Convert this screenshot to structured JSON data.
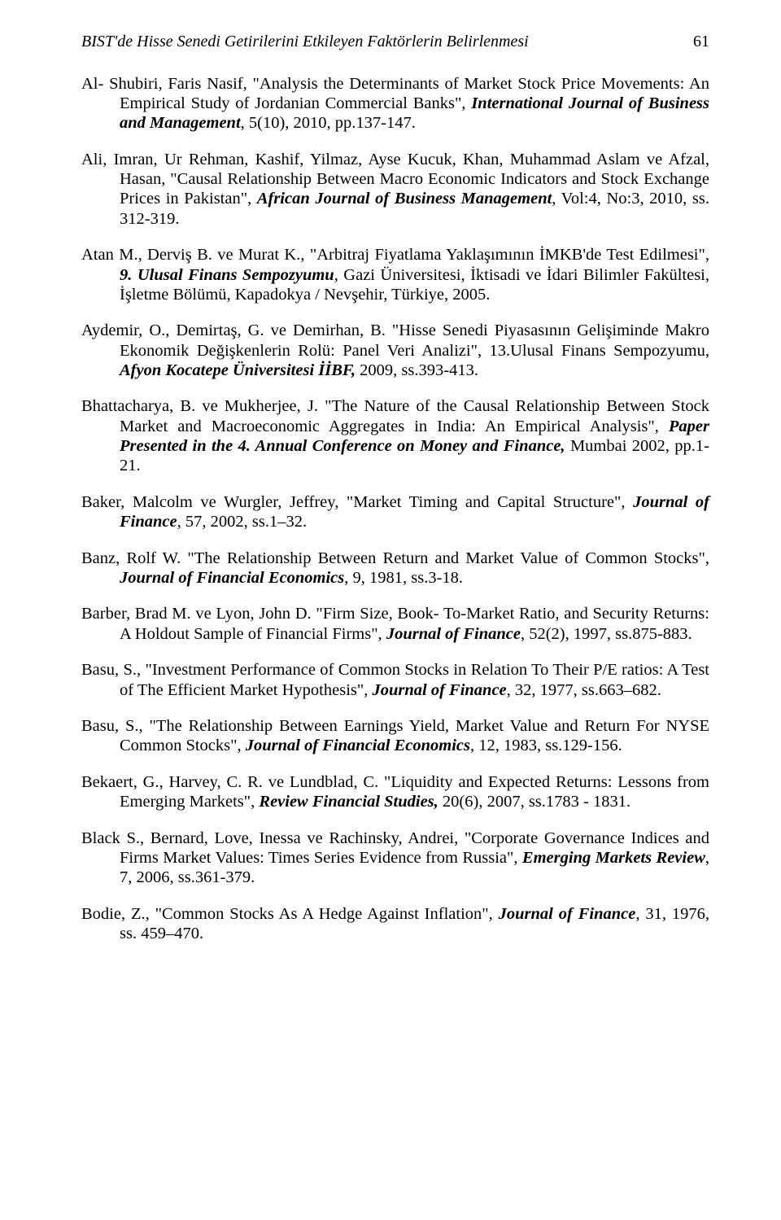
{
  "header": {
    "title": "BIST'de Hisse Senedi Getirilerini Etkileyen Faktörlerin Belirlenmesi",
    "page_number": "61"
  },
  "references": [
    {
      "r1": "Al- Shubiri, Faris Nasif, \"Analysis the Determinants of Market Stock Price Movements: An Empirical Study of Jordanian Commercial Banks\", ",
      "j1": "International Journal of Business and Management",
      "r2": ", 5(10), 2010, pp.137-147."
    },
    {
      "r1": "Ali, Imran, Ur Rehman, Kashif, Yilmaz, Ayse Kucuk, Khan, Muhammad Aslam ve Afzal, Hasan, \"Causal Relationship Between Macro Economic Indicators and Stock Exchange Prices in Pakistan\", ",
      "j1": "African Journal of Business Management",
      "r2": ", Vol:4, No:3, 2010, ss. 312-319."
    },
    {
      "r1": "Atan M., Derviş B. ve Murat K., \"Arbitraj Fiyatlama Yaklaşımının İMKB'de Test Edilmesi\", ",
      "j1": "9. Ulusal Finans Sempozyumu",
      "r2": ", Gazi Üniversitesi, İktisadi ve İdari Bilimler Fakültesi, İşletme Bölümü, Kapadokya / Nevşehir, Türkiye, 2005."
    },
    {
      "r1": "Aydemir, O., Demirtaş, G. ve Demirhan, B. \"Hisse Senedi Piyasasının Gelişiminde Makro Ekonomik Değişkenlerin Rolü: Panel Veri Analizi\", 13.Ulusal Finans Sempozyumu, ",
      "j1": "Afyon Kocatepe Üniversitesi İİBF,",
      "r2": " 2009, ss.393-413."
    },
    {
      "r1": "Bhattacharya, B. ve Mukherjee, J. \"The Nature of the Causal Relationship Between Stock Market and Macroeconomic Aggregates in India: An Empirical Analysis\", ",
      "j1": "Paper Presented in the 4. Annual Conference on Money and Finance,",
      "r2": " Mumbai 2002, pp.1-21."
    },
    {
      "r1": "Baker, Malcolm ve Wurgler, Jeffrey, \"Market Timing and Capital Structure\", ",
      "j1": "Journal of Finance",
      "r2": ", 57, 2002, ss.1–32."
    },
    {
      "r1": "Banz, Rolf W. \"The Relationship Between Return and Market Value of Common Stocks\", ",
      "j1": "Journal of Financial Economics",
      "r2": ", 9, 1981, ss.3-18."
    },
    {
      "r1": "Barber, Brad M. ve Lyon, John D. \"Firm Size, Book- To-Market Ratio, and Security Returns: A Holdout Sample of Financial Firms\", ",
      "j1": "Journal of Finance",
      "r2": ", 52(2), 1997, ss.875-883."
    },
    {
      "r1": "Basu, S., \"Investment Performance of Common Stocks in Relation To Their P/E ratios: A Test of The Efficient Market Hypothesis\", ",
      "j1": "Journal of Finance",
      "r2": ", 32, 1977, ss.663–682."
    },
    {
      "r1": "Basu, S., \"The Relationship Between Earnings Yield, Market Value and Return For NYSE Common Stocks\", ",
      "j1": "Journal of Financial Economics",
      "r2": ", 12, 1983, ss.129-156."
    },
    {
      "r1": "Bekaert, G., Harvey, C. R. ve Lundblad, C. \"Liquidity and Expected Returns: Lessons from Emerging Markets\", ",
      "j1": "Review Financial Studies,",
      "r2": " 20(6), 2007, ss.1783 - 1831."
    },
    {
      "r1": "Black S., Bernard, Love, Inessa ve Rachinsky, Andrei, \"Corporate Governance Indices and Firms Market Values: Times Series Evidence from Russia\", ",
      "j1": "Emerging Markets Review",
      "r2": ", 7, 2006, ss.361-379."
    },
    {
      "r1": "Bodie, Z., \"Common Stocks As A Hedge Against Inflation\", ",
      "j1": "Journal of Finance",
      "r2": ", 31, 1976, ss. 459–470."
    }
  ]
}
